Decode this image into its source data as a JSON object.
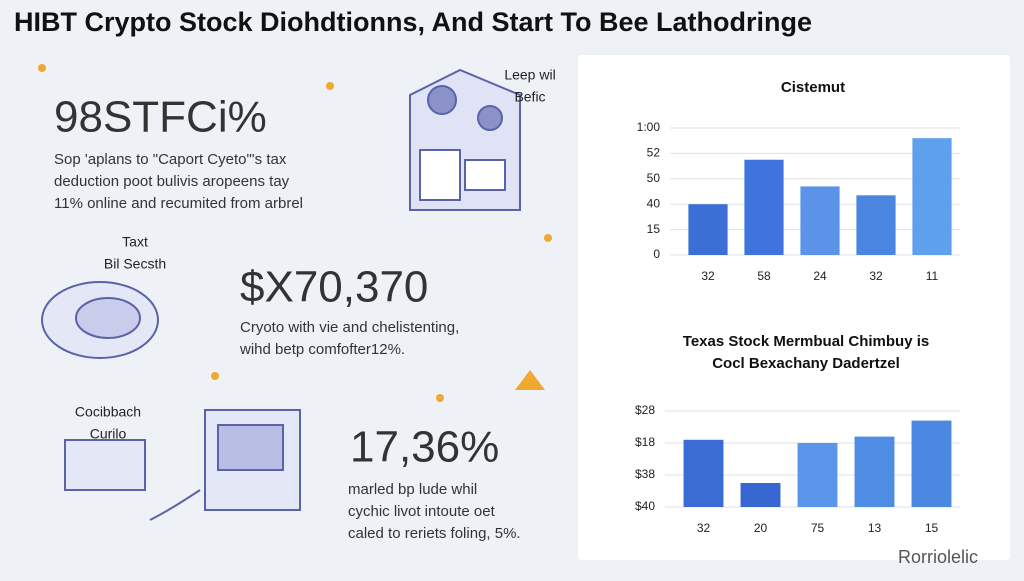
{
  "header": {
    "title": "HIBT Crypto Stock Diohdtionns, And Start To Bee Lathodringe"
  },
  "stats": [
    {
      "value": "98STFCi%",
      "lines": [
        "Sop 'aplans to \"Caport Cyeto\"'s tax",
        "deduction poot bulivis aropeens tay",
        "11% online and recumited from arbrel"
      ]
    },
    {
      "value": "$X70,370",
      "lines": [
        "Cryoto with vie and chelistenting,",
        "wihd betp comfofter12%."
      ]
    },
    {
      "value": "17,36%",
      "lines": [
        "marled bp lude whil",
        "cychic livot intoute oet",
        "caled to reriets foling, 5%."
      ]
    }
  ],
  "icon_labels": [
    {
      "lines": [
        "Leep wil",
        "Befic"
      ]
    },
    {
      "lines": [
        "Taxt",
        "Bil Secsth"
      ]
    },
    {
      "lines": [
        "Cocibbach",
        "Curilo"
      ]
    }
  ],
  "brand": "Rorriolelic",
  "chart_data": [
    {
      "type": "bar",
      "title": "Cistemut",
      "categories": [
        "32",
        "58",
        "24",
        "32",
        "11"
      ],
      "values": [
        2.0,
        3.75,
        2.7,
        2.35,
        4.6
      ],
      "colors": [
        "#3b6fd6",
        "#3e74dc",
        "#5a93e8",
        "#4a86e0",
        "#5fa0ec"
      ],
      "ylim": [
        0,
        5
      ],
      "yticks": [
        {
          "value": 0,
          "label": "0"
        },
        {
          "value": 1,
          "label": "15"
        },
        {
          "value": 2,
          "label": "40"
        },
        {
          "value": 3,
          "label": "50"
        },
        {
          "value": 4,
          "label": "52"
        },
        {
          "value": 5,
          "label": "1:00"
        }
      ],
      "grid": true
    },
    {
      "type": "bar",
      "title": [
        "Texas Stock Mermbual Chimbuy is",
        "Cocl Bexachany Dadertzel"
      ],
      "categories": [
        "32",
        "20",
        "75",
        "13",
        "15"
      ],
      "values": [
        2.1,
        0.75,
        2.0,
        2.2,
        2.7
      ],
      "colors": [
        "#3a6cd4",
        "#3767d0",
        "#5a95ea",
        "#4f8ce4",
        "#4a88e2"
      ],
      "ylim": [
        0,
        3
      ],
      "yticks": [
        {
          "value": 0,
          "label": "$40"
        },
        {
          "value": 1,
          "label": "$38"
        },
        {
          "value": 2,
          "label": "$18"
        },
        {
          "value": 3,
          "label": "$28"
        }
      ],
      "grid": true
    }
  ]
}
